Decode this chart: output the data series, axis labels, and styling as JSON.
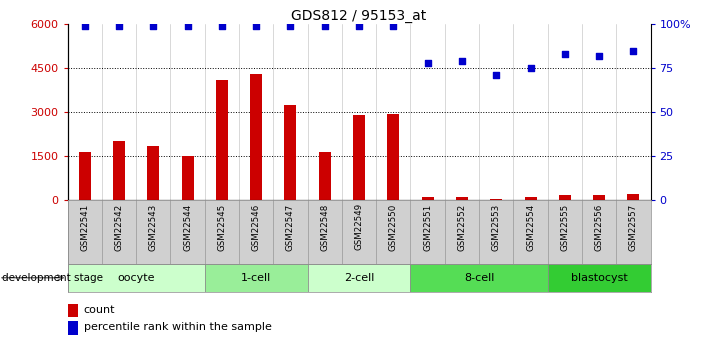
{
  "title": "GDS812 / 95153_at",
  "samples": [
    "GSM22541",
    "GSM22542",
    "GSM22543",
    "GSM22544",
    "GSM22545",
    "GSM22546",
    "GSM22547",
    "GSM22548",
    "GSM22549",
    "GSM22550",
    "GSM22551",
    "GSM22552",
    "GSM22553",
    "GSM22554",
    "GSM22555",
    "GSM22556",
    "GSM22557"
  ],
  "counts": [
    1650,
    2000,
    1850,
    1500,
    4100,
    4300,
    3250,
    1650,
    2900,
    2950,
    100,
    100,
    50,
    100,
    180,
    190,
    200
  ],
  "percentiles": [
    99,
    99,
    99,
    99,
    99,
    99,
    99,
    99,
    99,
    99,
    78,
    79,
    71,
    75,
    83,
    82,
    85
  ],
  "bar_color": "#cc0000",
  "dot_color": "#0000cc",
  "ylim_left": [
    0,
    6000
  ],
  "yticks_left": [
    0,
    1500,
    3000,
    4500,
    6000
  ],
  "ylim_right": [
    0,
    100
  ],
  "yticks_right": [
    0,
    25,
    50,
    75,
    100
  ],
  "yticklabels_right": [
    "0",
    "25",
    "50",
    "75",
    "100%"
  ],
  "stages": [
    {
      "label": "oocyte",
      "start": 0,
      "end": 3,
      "color": "#ccffcc"
    },
    {
      "label": "1-cell",
      "start": 4,
      "end": 6,
      "color": "#99ee99"
    },
    {
      "label": "2-cell",
      "start": 7,
      "end": 9,
      "color": "#ccffcc"
    },
    {
      "label": "8-cell",
      "start": 10,
      "end": 13,
      "color": "#55dd55"
    },
    {
      "label": "blastocyst",
      "start": 14,
      "end": 16,
      "color": "#33cc33"
    }
  ],
  "dev_stage_label": "development stage",
  "legend_count_label": "count",
  "legend_pct_label": "percentile rank within the sample",
  "tick_label_color_left": "#cc0000",
  "tick_label_color_right": "#0000cc",
  "bg_sample_row": "#d0d0d0"
}
